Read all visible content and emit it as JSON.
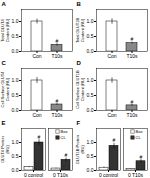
{
  "chart_data": [
    {
      "type": "bar",
      "title": "A",
      "categories": [
        "Con",
        "T10s"
      ],
      "values": [
        1.0,
        0.22
      ],
      "error": [
        0.08,
        0.04
      ],
      "colors": [
        "white",
        "#888888"
      ],
      "ylabel": "Total GLUT4\nContent (RU)",
      "ylim": [
        0,
        1.4
      ],
      "yticks": [
        {
          "value": 0,
          "label": "0.0"
        },
        0.5,
        {
          "value": 1.0,
          "label": "1.0"
        }
      ],
      "annotations": [
        {
          "category": "T10s",
          "text": "#"
        }
      ]
    },
    {
      "type": "bar",
      "title": "B",
      "categories": [
        "Con",
        "T10s"
      ],
      "values": [
        1.0,
        0.28
      ],
      "error": [
        0.09,
        0.03
      ],
      "colors": [
        "white",
        "#888888"
      ],
      "ylabel": "Total GLUT1B\nContent (RU)",
      "ylim": [
        0,
        1.4
      ],
      "yticks": [
        {
          "value": 0,
          "label": "0.0"
        },
        0.5,
        {
          "value": 1.0,
          "label": "1.0"
        }
      ],
      "annotations": [
        {
          "category": "T10s",
          "text": "#"
        }
      ]
    },
    {
      "type": "bar",
      "title": "C",
      "categories": [
        "Con",
        "T10s"
      ],
      "values": [
        1.0,
        0.2
      ],
      "error": [
        0.1,
        0.03
      ],
      "colors": [
        "white",
        "#888888"
      ],
      "ylabel": "Cell Surface GLUT4\nContent (RU)",
      "ylim": [
        0,
        1.4
      ],
      "yticks": [
        {
          "value": 0,
          "label": "0.0"
        },
        0.5,
        {
          "value": 1.0,
          "label": "1.0"
        }
      ],
      "annotations": [
        {
          "category": "T10s",
          "text": "#"
        }
      ]
    },
    {
      "type": "bar",
      "title": "D",
      "categories": [
        "Con",
        "T10s"
      ],
      "values": [
        1.0,
        0.17
      ],
      "error": [
        0.09,
        0.03
      ],
      "colors": [
        "white",
        "#888888"
      ],
      "ylabel": "Cell Surface GLUT1B\nContent (RU)",
      "ylim": [
        0,
        1.4
      ],
      "yticks": [
        {
          "value": 0,
          "label": "0.0"
        },
        0.5,
        {
          "value": 1.0,
          "label": "1.0"
        }
      ],
      "annotations": [
        {
          "category": "T10s",
          "text": "#"
        }
      ]
    },
    {
      "type": "bar",
      "title": "E",
      "categories": [
        "0 control",
        "0 T10s"
      ],
      "series": [
        {
          "name": "Bas",
          "color": "white",
          "values": [
            0.12,
            0.07
          ],
          "error": [
            0.02,
            0.015
          ]
        },
        {
          "name": "CL",
          "color": "#333333",
          "values": [
            1.0,
            0.38
          ],
          "error": [
            0.1,
            0.07
          ]
        }
      ],
      "ylabel": "GLUT4 Protein\n(RU)",
      "ylim": [
        0,
        1.5
      ],
      "yticks": [
        {
          "value": 0,
          "label": "0.0"
        },
        0.5,
        {
          "value": 1.0,
          "label": "1.0"
        }
      ],
      "legend": "upper right",
      "annotations": [
        {
          "category": "0 control",
          "series": "CL",
          "text": "#"
        },
        {
          "category": "0 T10s",
          "series": "CL",
          "text": "#"
        }
      ]
    },
    {
      "type": "bar",
      "title": "F",
      "categories": [
        "0 control",
        "0 T10s"
      ],
      "series": [
        {
          "name": "Bas",
          "color": "white",
          "values": [
            0.1,
            0.06
          ],
          "error": [
            0.02,
            0.01
          ]
        },
        {
          "name": "CL",
          "color": "#333333",
          "values": [
            0.88,
            0.33
          ],
          "error": [
            0.09,
            0.06
          ]
        }
      ],
      "ylabel": "GLUT1B Protein\n(RU)",
      "ylim": [
        0,
        1.5
      ],
      "yticks": [
        {
          "value": 0,
          "label": "0.0"
        },
        0.5,
        {
          "value": 1.0,
          "label": "1.0"
        }
      ],
      "legend": "upper right",
      "annotations": [
        {
          "category": "0 control",
          "series": "CL",
          "text": "#"
        },
        {
          "category": "0 T10s",
          "series": "CL",
          "text": "#"
        }
      ]
    }
  ]
}
